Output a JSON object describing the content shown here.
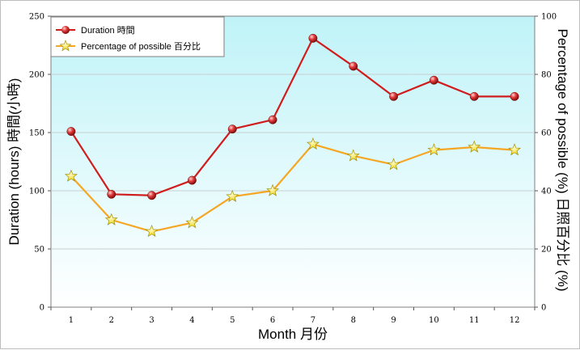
{
  "chart_data": {
    "type": "line",
    "x": [
      1,
      2,
      3,
      4,
      5,
      6,
      7,
      8,
      9,
      10,
      11,
      12
    ],
    "xlabel": "Month 月份",
    "ylabel_left": "Duration (hours) 時間(小時)",
    "ylabel_right": "Percentage of possible (%) 日照百分比 (%)",
    "ylim_left": [
      0,
      250
    ],
    "ylim_right": [
      0,
      100
    ],
    "left_ticks": [
      "0",
      "50",
      "100",
      "150",
      "200",
      "250"
    ],
    "right_ticks": [
      "0",
      "20",
      "40",
      "60",
      "80",
      "100"
    ],
    "x_ticks": [
      "1",
      "2",
      "3",
      "4",
      "5",
      "6",
      "7",
      "8",
      "9",
      "10",
      "11",
      "12"
    ],
    "grid": true,
    "legend_position": "top-left",
    "series": [
      {
        "name": "Duration 時間",
        "axis": "left",
        "color": "#d01c1c",
        "marker": "red-sphere",
        "values": [
          151,
          97,
          96,
          109,
          153,
          161,
          231,
          207,
          181,
          195,
          181,
          181
        ]
      },
      {
        "name": "Percentage of possible 百分比",
        "axis": "right",
        "color": "#f5a623",
        "marker": "yellow-star",
        "values": [
          45,
          30,
          26,
          29,
          38,
          40,
          56,
          52,
          49,
          54,
          55,
          54
        ]
      }
    ],
    "colors": {
      "plot_top": "#bff3f8",
      "plot_bottom": "#ffffff",
      "grid": "#c8d0d0"
    }
  }
}
